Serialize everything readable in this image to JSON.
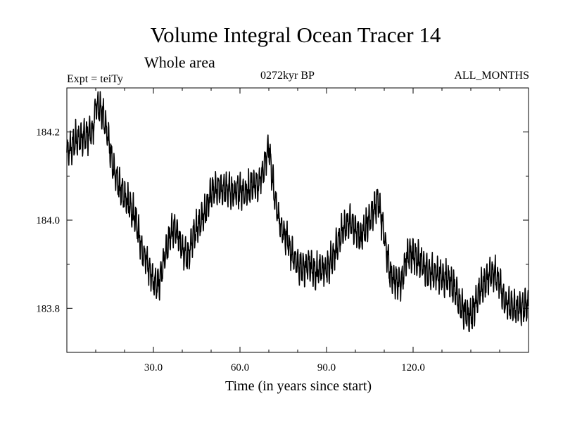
{
  "chart_data": {
    "type": "line",
    "title": "Volume Integral Ocean Tracer 14",
    "subtitle": "Whole area",
    "annotations": {
      "experiment": "Expt = teiTy",
      "period": "0272kyr BP",
      "months": "ALL_MONTHS"
    },
    "xlabel": "Time (in years since start)",
    "ylabel": "",
    "xlim": [
      0,
      160
    ],
    "ylim": [
      183.7,
      184.3
    ],
    "x_ticks": [
      30,
      60,
      90,
      120
    ],
    "x_tick_labels": [
      "30.0",
      "60.0",
      "90.0",
      "120.0"
    ],
    "y_ticks": [
      183.8,
      184.0,
      184.2
    ],
    "y_tick_labels": [
      "183.8",
      "184.0",
      "184.2"
    ],
    "grid": false,
    "series": [
      {
        "name": "Volume Integral Ocean Tracer 14",
        "x": [
          0,
          3,
          6,
          9,
          10,
          12,
          14,
          16,
          18,
          20,
          22,
          24,
          26,
          28,
          30,
          32,
          34,
          36,
          38,
          40,
          42,
          44,
          46,
          48,
          50,
          52,
          54,
          56,
          58,
          60,
          62,
          64,
          66,
          68,
          70,
          72,
          74,
          76,
          78,
          80,
          82,
          84,
          86,
          88,
          90,
          92,
          94,
          96,
          98,
          100,
          102,
          104,
          106,
          108,
          110,
          112,
          114,
          116,
          118,
          120,
          122,
          124,
          126,
          128,
          130,
          132,
          134,
          136,
          138,
          140,
          142,
          144,
          146,
          148,
          150,
          152,
          155,
          158,
          160
        ],
        "values": [
          184.15,
          184.18,
          184.19,
          184.2,
          184.26,
          184.25,
          184.2,
          184.12,
          184.08,
          184.05,
          184.03,
          184.0,
          183.93,
          183.9,
          183.86,
          183.86,
          183.92,
          183.97,
          183.98,
          183.93,
          183.92,
          183.97,
          183.99,
          184.02,
          184.06,
          184.07,
          184.07,
          184.07,
          184.06,
          184.07,
          184.06,
          184.08,
          184.08,
          184.11,
          184.17,
          184.05,
          183.99,
          183.96,
          183.92,
          183.9,
          183.89,
          183.9,
          183.88,
          183.89,
          183.89,
          183.91,
          183.95,
          183.98,
          184.0,
          183.98,
          183.96,
          183.99,
          184.02,
          184.05,
          183.96,
          183.88,
          183.86,
          183.86,
          183.92,
          183.92,
          183.91,
          183.89,
          183.88,
          183.88,
          183.87,
          183.87,
          183.85,
          183.81,
          183.79,
          183.78,
          183.82,
          183.85,
          183.87,
          183.88,
          183.86,
          183.81,
          183.8,
          183.8,
          183.81
        ]
      }
    ]
  }
}
